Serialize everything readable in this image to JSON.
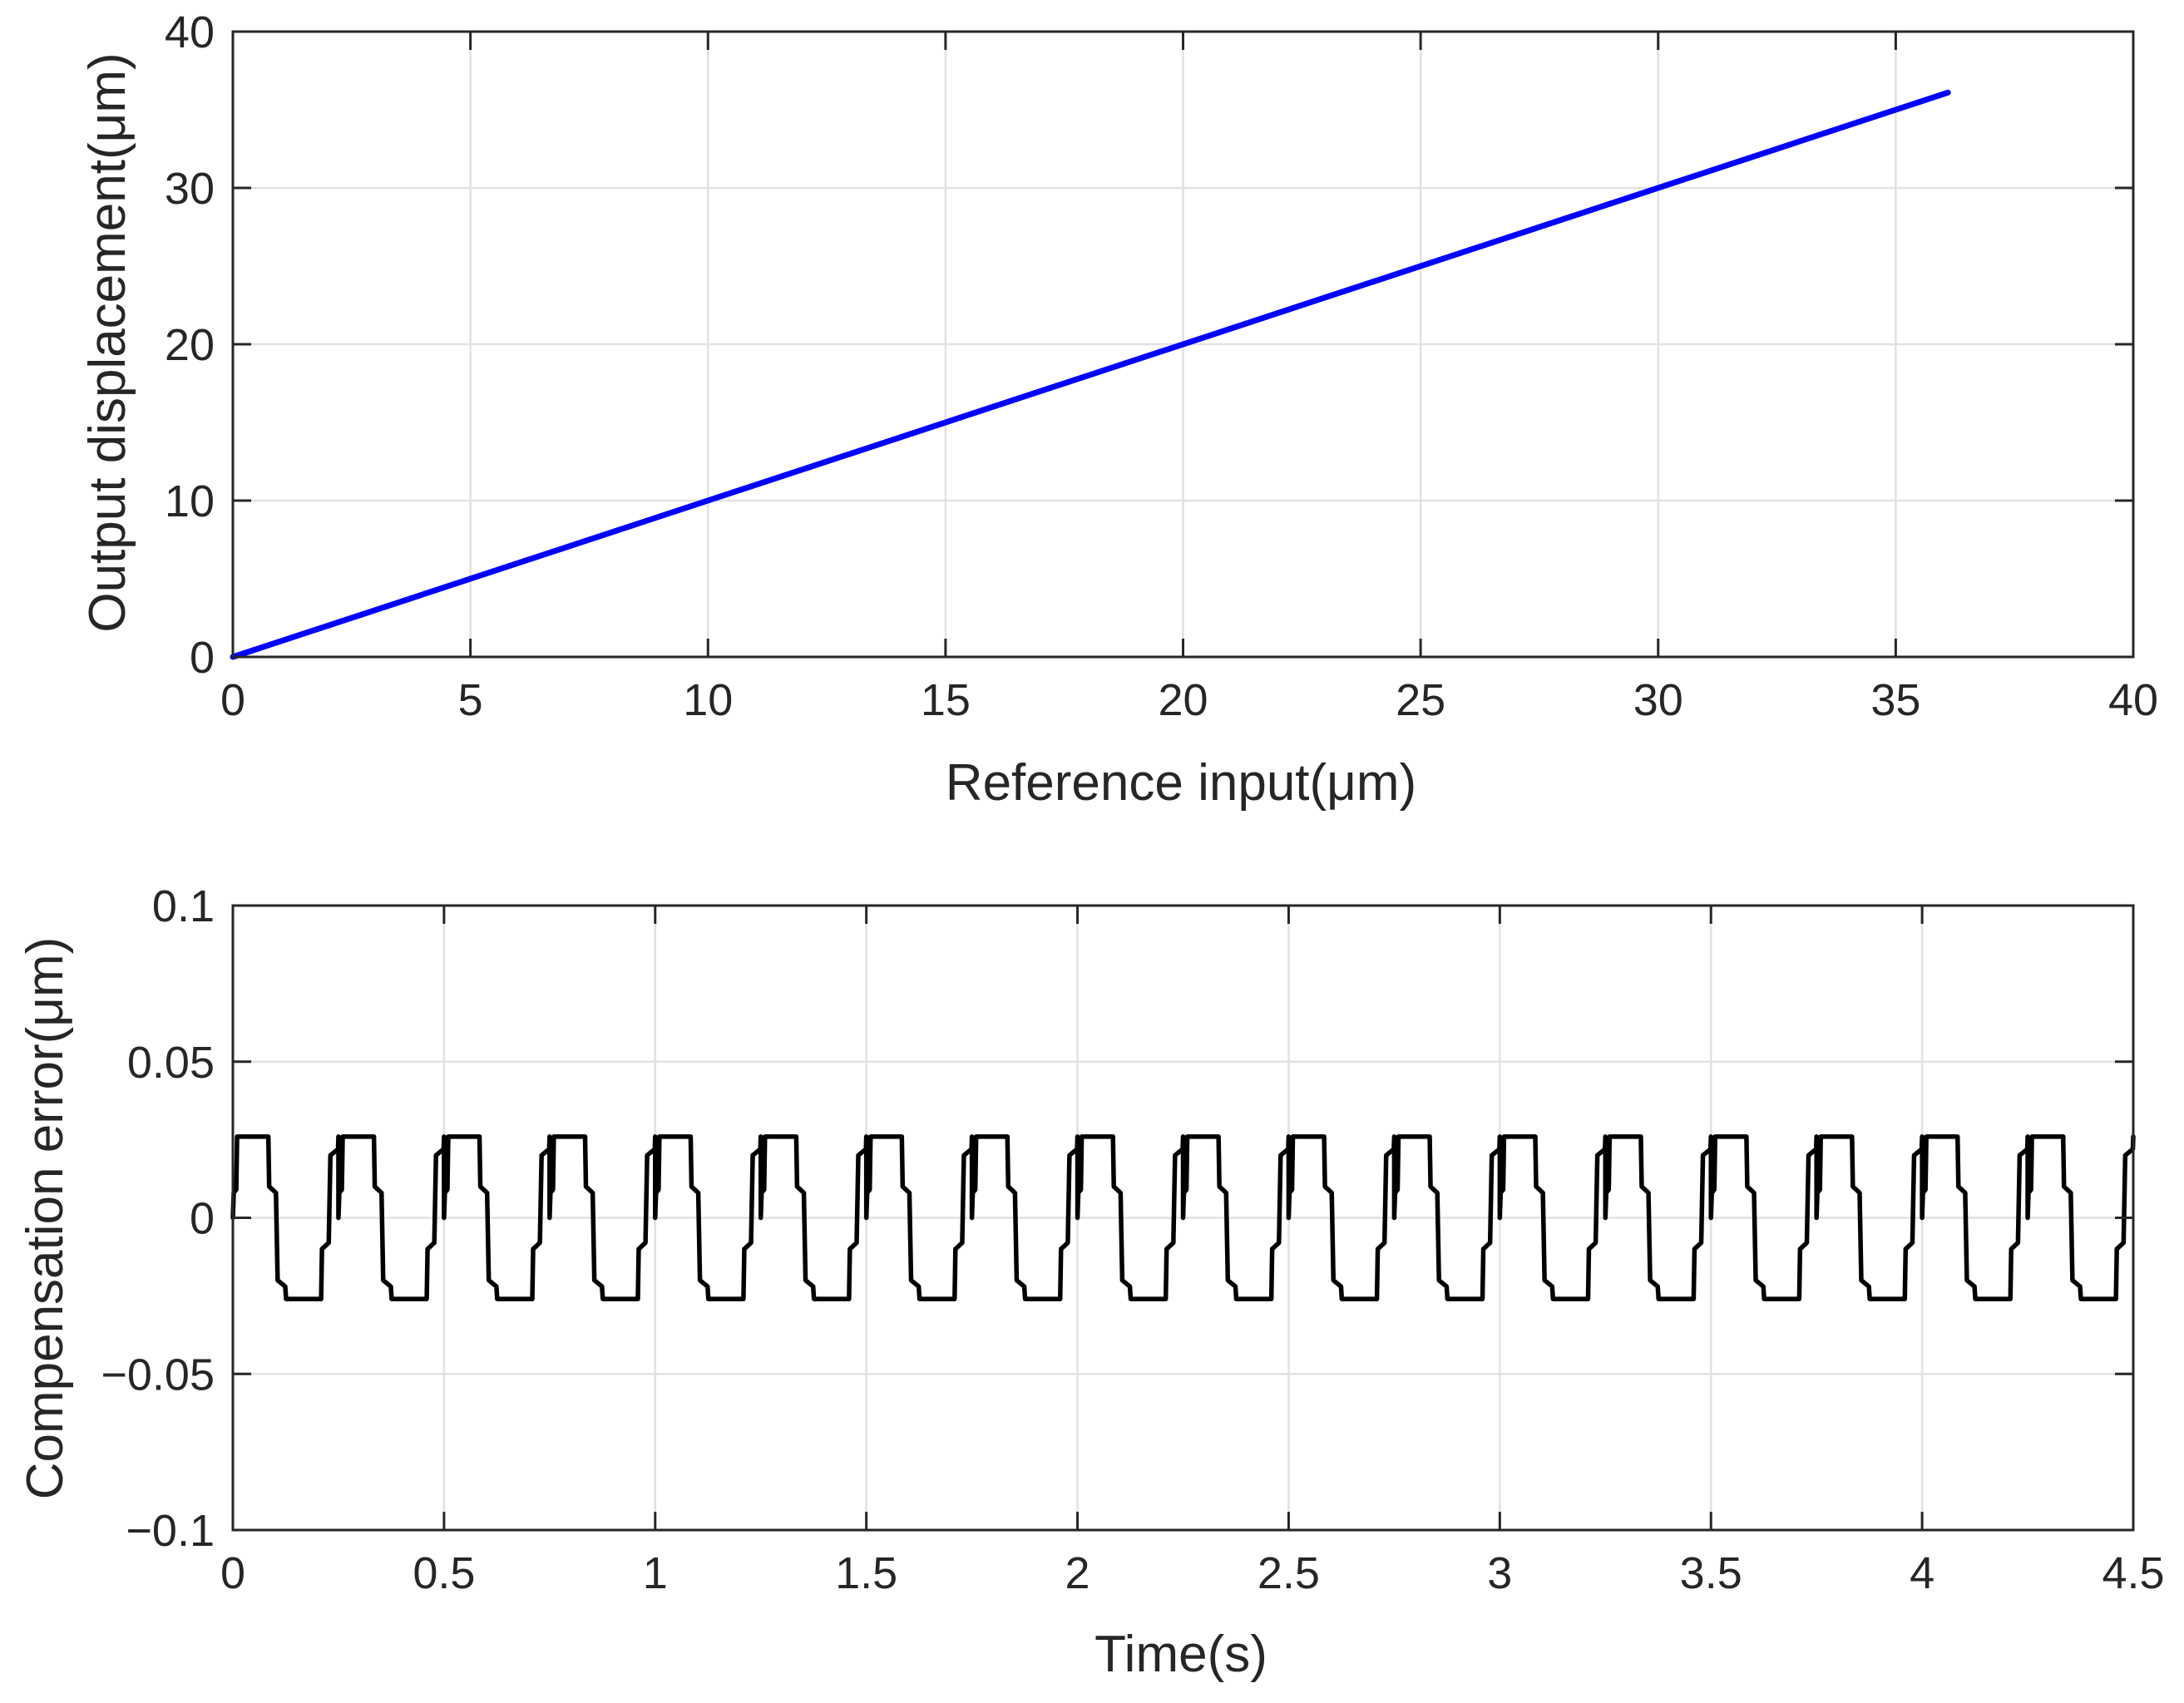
{
  "chart_data": [
    {
      "type": "line",
      "xlabel": "Reference input(μm)",
      "ylabel": "Output displacement(μm)",
      "xlim": [
        0,
        40
      ],
      "ylim": [
        0,
        40
      ],
      "xticks": [
        "0",
        "5",
        "10",
        "15",
        "20",
        "25",
        "30",
        "35",
        "40"
      ],
      "yticks": [
        "0",
        "10",
        "20",
        "30",
        "40"
      ],
      "grid": true,
      "series": [
        {
          "color": "#0000ff",
          "x": [
            0,
            36.1
          ],
          "y": [
            0,
            36.1
          ]
        }
      ]
    },
    {
      "type": "line",
      "xlabel": "Time(s)",
      "ylabel": "Compensation error(μm)",
      "xlim": [
        0,
        4.5
      ],
      "ylim": [
        -0.1,
        0.1
      ],
      "xticks": [
        "0",
        "0.5",
        "1",
        "1.5",
        "2",
        "2.5",
        "3",
        "3.5",
        "4",
        "4.5"
      ],
      "yticks": [
        "−0.1",
        "−0.05",
        "0",
        "0.05",
        "0.1"
      ],
      "grid": true,
      "series": [
        {
          "color": "#000000",
          "period": 0.25,
          "cycle_x": [
            0,
            0.002,
            0.008,
            0.01,
            0.084,
            0.086,
            0.102,
            0.106,
            0.124,
            0.126,
            0.127,
            0.209,
            0.211,
            0.227,
            0.231,
            0.249,
            0.25
          ],
          "cycle_y": [
            0,
            0.008,
            0.009,
            0.026,
            0.026,
            0.01,
            0.008,
            -0.02,
            -0.022,
            -0.026,
            -0.026,
            -0.026,
            -0.01,
            -0.008,
            0.02,
            0.022,
            0.026
          ],
          "x_end": 4.5
        }
      ]
    }
  ]
}
